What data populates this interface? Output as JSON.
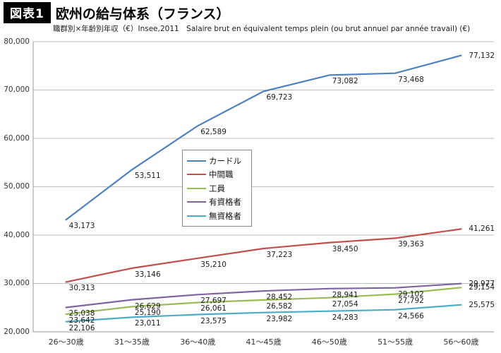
{
  "header": {
    "badge": "図表1",
    "title": "欧州の給与体系（フランス）",
    "subtitle": "職群別×年齢別年収（€）Insee,2011　Salaire brut en équivalent temps plein (ou brut annuel par année travail) (€)"
  },
  "chart_data": {
    "type": "line",
    "categories": [
      "26～30歳",
      "31～35歳",
      "36～40歳",
      "41～45歳",
      "46～50歳",
      "51～55歳",
      "56～60歳"
    ],
    "series": [
      {
        "name": "カードル",
        "color": "#4F81BD",
        "values": [
          43173,
          53511,
          62589,
          69723,
          73082,
          73468,
          77132
        ]
      },
      {
        "name": "中間職",
        "color": "#C0504D",
        "values": [
          30313,
          33146,
          35210,
          37223,
          38450,
          39363,
          41261
        ]
      },
      {
        "name": "工員",
        "color": "#9BBB59",
        "values": [
          23642,
          25190,
          26061,
          26582,
          27054,
          27792,
          29154
        ]
      },
      {
        "name": "有資格者",
        "color": "#8064A2",
        "values": [
          25038,
          26629,
          27697,
          28452,
          28941,
          29102,
          29977
        ]
      },
      {
        "name": "無資格者",
        "color": "#4BACC6",
        "values": [
          22106,
          23011,
          23575,
          23982,
          24283,
          24566,
          25575
        ]
      }
    ],
    "title": "欧州の給与体系（フランス）",
    "xlabel": "",
    "ylabel": "",
    "ylim": [
      20000,
      80000
    ],
    "ytick_step": 10000,
    "grid": true,
    "data_labels": true,
    "legend_position": "inside upper-left-center",
    "colors": {
      "gridline": "#bdbdbd",
      "axis": "#9a9a9a",
      "label_text": "#1a1a1a"
    }
  }
}
